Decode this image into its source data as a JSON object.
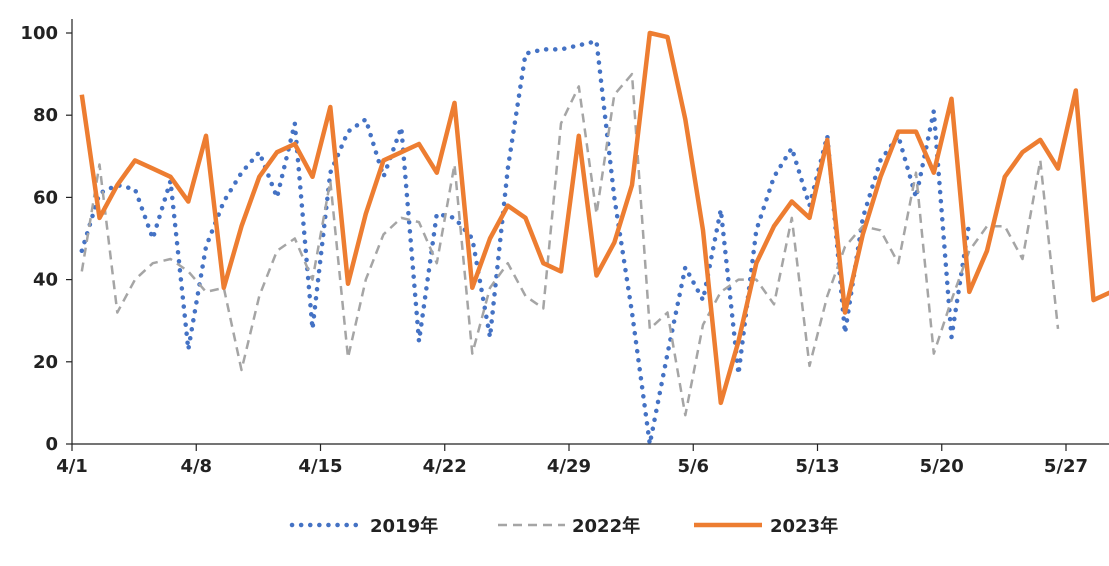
{
  "chart_data": {
    "type": "line",
    "xlabel": "",
    "ylabel": "",
    "ylim": [
      0,
      100
    ],
    "yticks": [
      "0",
      "20",
      "40",
      "60",
      "80",
      "100"
    ],
    "x_tick_labels": [
      "4/1",
      "4/8",
      "4/15",
      "4/22",
      "4/29",
      "5/6",
      "5/13",
      "5/20",
      "5/27"
    ],
    "x_tick_days": [
      0,
      7,
      14,
      21,
      28,
      35,
      42,
      49,
      56
    ],
    "dates": [
      "4/1",
      "4/2",
      "4/3",
      "4/4",
      "4/5",
      "4/6",
      "4/7",
      "4/8",
      "4/9",
      "4/10",
      "4/11",
      "4/12",
      "4/13",
      "4/14",
      "4/15",
      "4/16",
      "4/17",
      "4/18",
      "4/19",
      "4/20",
      "4/21",
      "4/22",
      "4/23",
      "4/24",
      "4/25",
      "4/26",
      "4/27",
      "4/28",
      "4/29",
      "4/30",
      "5/1",
      "5/2",
      "5/3",
      "5/4",
      "5/5",
      "5/6",
      "5/7",
      "5/8",
      "5/9",
      "5/10",
      "5/11",
      "5/12",
      "5/13",
      "5/14",
      "5/15",
      "5/16",
      "5/17",
      "5/18",
      "5/19",
      "5/20",
      "5/21",
      "5/22",
      "5/23",
      "5/24",
      "5/25",
      "5/26",
      "5/27",
      "5/28",
      "5/29",
      "5/30",
      "5/31"
    ],
    "legend_position": "bottom",
    "series": [
      {
        "name": "2019年",
        "color": "#4472C4",
        "style": "dotted",
        "values": [
          47,
          61,
          63,
          62,
          50,
          64,
          23,
          48,
          59,
          66,
          71,
          60,
          78,
          28,
          66,
          76,
          79,
          65,
          77,
          25,
          56,
          55,
          50,
          26,
          67,
          95,
          96,
          96,
          97,
          98,
          60,
          32,
          0,
          22,
          43,
          35,
          57,
          17,
          52,
          65,
          72,
          58,
          75,
          27,
          55,
          69,
          75,
          60,
          81,
          26,
          54,
          null,
          null,
          null,
          null,
          null,
          null,
          null,
          null,
          null,
          null
        ]
      },
      {
        "name": "2022年",
        "color": "#A5A5A5",
        "style": "dashed",
        "values": [
          42,
          68,
          32,
          40,
          44,
          45,
          42,
          37,
          38,
          18,
          36,
          47,
          50,
          40,
          64,
          21,
          40,
          51,
          55,
          54,
          44,
          68,
          22,
          38,
          44,
          36,
          33,
          78,
          87,
          56,
          85,
          90,
          28,
          32,
          7,
          29,
          37,
          40,
          40,
          34,
          55,
          19,
          36,
          48,
          53,
          52,
          44,
          66,
          22,
          35,
          47,
          53,
          53,
          45,
          69,
          28,
          null,
          null,
          null,
          null,
          null
        ]
      },
      {
        "name": "2023年",
        "color": "#ED7D31",
        "style": "solid",
        "values": [
          85,
          55,
          63,
          69,
          67,
          65,
          59,
          75,
          38,
          53,
          65,
          71,
          73,
          65,
          82,
          39,
          56,
          69,
          71,
          73,
          66,
          83,
          38,
          50,
          58,
          55,
          44,
          42,
          75,
          41,
          49,
          63,
          100,
          99,
          79,
          52,
          10,
          25,
          44,
          53,
          59,
          55,
          74,
          32,
          51,
          65,
          76,
          76,
          66,
          84,
          37,
          47,
          65,
          71,
          74,
          67,
          86,
          35,
          37,
          null,
          null
        ]
      }
    ]
  }
}
